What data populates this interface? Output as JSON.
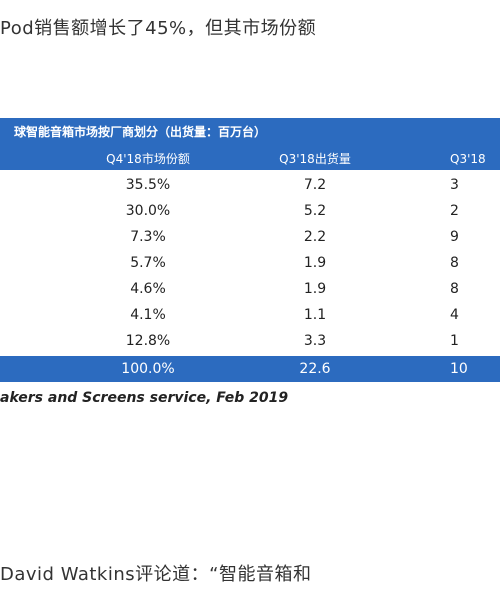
{
  "top_text": "Pod销售额增长了45%，但其市场份额",
  "table": {
    "title": "球智能音箱市场按厂商划分（出货量：百万台）",
    "headers": [
      "Q4'18市场份额",
      "Q3'18出货量",
      "Q3'18"
    ],
    "rows": [
      [
        "35.5%",
        "7.2",
        "3"
      ],
      [
        "30.0%",
        "5.2",
        "2"
      ],
      [
        "7.3%",
        "2.2",
        "9"
      ],
      [
        "5.7%",
        "1.9",
        "8"
      ],
      [
        "4.6%",
        "1.9",
        "8"
      ],
      [
        "4.1%",
        "1.1",
        "4"
      ],
      [
        "12.8%",
        "3.3",
        "1"
      ]
    ],
    "total": [
      "100.0%",
      "22.6",
      "10"
    ],
    "source": "akers and Screens service, Feb 2019"
  },
  "bottom_text": "David Watkins评论道：“智能音箱和",
  "colors": {
    "table_header": "#2c6bbf"
  }
}
